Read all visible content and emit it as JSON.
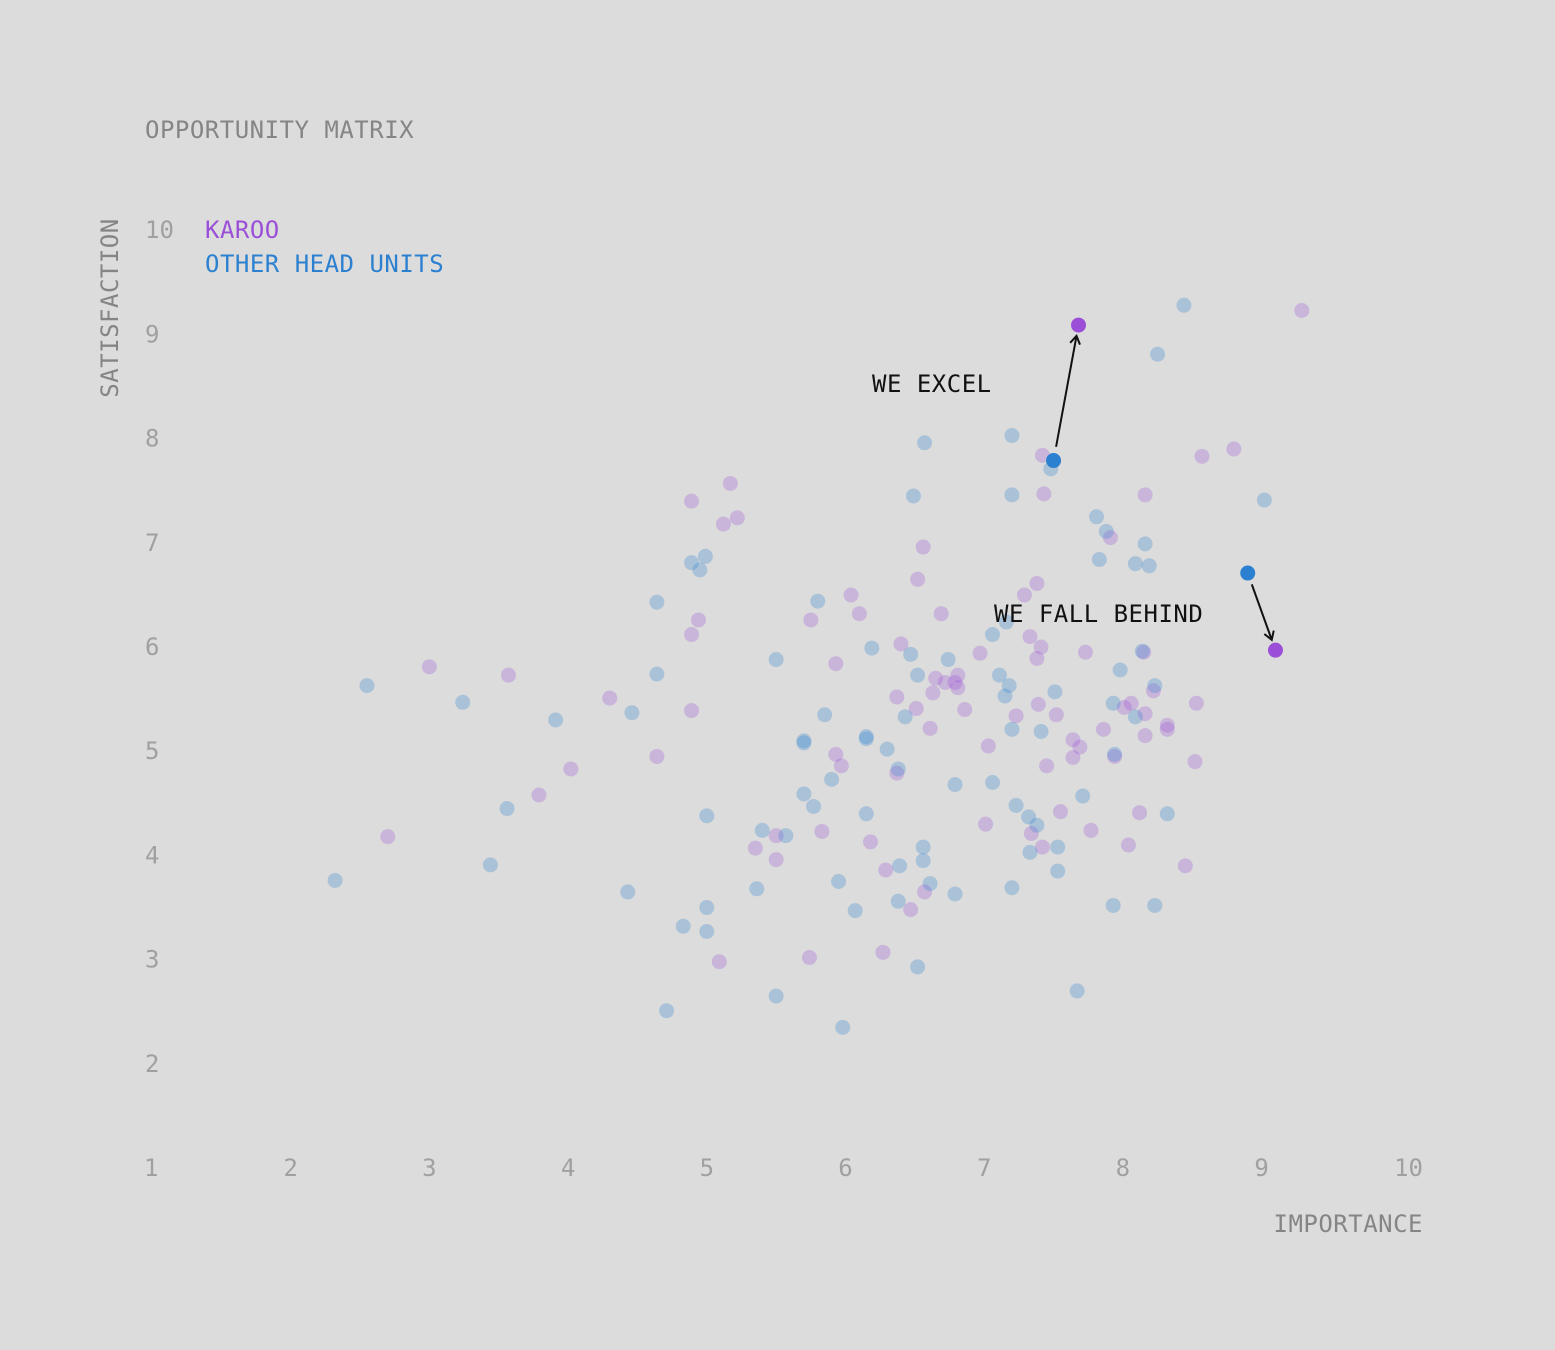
{
  "chart_data": {
    "type": "scatter",
    "title": "OPPORTUNITY MATRIX",
    "xlabel": "IMPORTANCE",
    "ylabel": "SATISFACTION",
    "xlim": [
      1,
      10
    ],
    "ylim": [
      1,
      10
    ],
    "xticks": [
      "1",
      "2",
      "3",
      "4",
      "5",
      "6",
      "7",
      "8",
      "9",
      "10"
    ],
    "yticks": [
      "2",
      "3",
      "4",
      "5",
      "6",
      "7",
      "8",
      "9",
      "10"
    ],
    "grid": false,
    "legend_position": "top-left",
    "series": [
      {
        "name": "KAROO",
        "color": "#9b4fd8",
        "points": [
          [
            3.0,
            5.8
          ],
          [
            3.57,
            5.72
          ],
          [
            2.7,
            4.17
          ],
          [
            3.79,
            4.57
          ],
          [
            4.02,
            4.82
          ],
          [
            4.3,
            5.5
          ],
          [
            4.64,
            4.94
          ],
          [
            4.89,
            7.39
          ],
          [
            4.89,
            5.38
          ],
          [
            4.89,
            6.11
          ],
          [
            4.94,
            6.25
          ],
          [
            5.12,
            7.17
          ],
          [
            5.17,
            7.56
          ],
          [
            5.22,
            7.23
          ],
          [
            5.09,
            2.97
          ],
          [
            5.35,
            4.06
          ],
          [
            5.5,
            3.95
          ],
          [
            5.5,
            4.18
          ],
          [
            5.74,
            3.01
          ],
          [
            5.75,
            6.25
          ],
          [
            5.83,
            4.22
          ],
          [
            5.93,
            5.83
          ],
          [
            5.93,
            4.96
          ],
          [
            5.97,
            4.85
          ],
          [
            6.04,
            6.49
          ],
          [
            6.1,
            6.31
          ],
          [
            6.18,
            4.12
          ],
          [
            6.27,
            3.06
          ],
          [
            6.29,
            3.85
          ],
          [
            6.37,
            4.78
          ],
          [
            6.37,
            5.51
          ],
          [
            6.4,
            6.02
          ],
          [
            6.47,
            3.47
          ],
          [
            6.51,
            5.4
          ],
          [
            6.52,
            6.64
          ],
          [
            6.56,
            6.95
          ],
          [
            6.57,
            3.64
          ],
          [
            6.61,
            5.21
          ],
          [
            6.63,
            5.55
          ],
          [
            6.65,
            5.69
          ],
          [
            6.69,
            6.31
          ],
          [
            6.72,
            5.65
          ],
          [
            6.79,
            5.65
          ],
          [
            6.81,
            5.6
          ],
          [
            6.81,
            5.72
          ],
          [
            6.86,
            5.39
          ],
          [
            6.97,
            5.93
          ],
          [
            7.01,
            4.29
          ],
          [
            7.03,
            5.04
          ],
          [
            7.23,
            5.33
          ],
          [
            7.29,
            6.49
          ],
          [
            7.33,
            6.09
          ],
          [
            7.34,
            4.2
          ],
          [
            7.38,
            5.88
          ],
          [
            7.38,
            6.6
          ],
          [
            7.39,
            5.44
          ],
          [
            7.41,
            5.99
          ],
          [
            7.42,
            7.83
          ],
          [
            7.42,
            4.07
          ],
          [
            7.43,
            7.46
          ],
          [
            7.45,
            4.85
          ],
          [
            7.52,
            5.34
          ],
          [
            7.55,
            4.41
          ],
          [
            7.64,
            5.1
          ],
          [
            7.64,
            4.93
          ],
          [
            7.69,
            5.03
          ],
          [
            7.73,
            5.94
          ],
          [
            7.77,
            4.23
          ],
          [
            7.86,
            5.2
          ],
          [
            7.91,
            7.04
          ],
          [
            7.94,
            4.94
          ],
          [
            8.01,
            5.41
          ],
          [
            8.04,
            4.09
          ],
          [
            8.06,
            5.45
          ],
          [
            8.12,
            4.4
          ],
          [
            8.16,
            5.35
          ],
          [
            8.16,
            5.14
          ],
          [
            8.16,
            7.45
          ],
          [
            8.22,
            5.57
          ],
          [
            8.32,
            5.24
          ],
          [
            8.32,
            5.2
          ],
          [
            8.45,
            3.89
          ],
          [
            8.52,
            4.89
          ],
          [
            8.53,
            5.45
          ],
          [
            8.57,
            7.82
          ],
          [
            8.8,
            7.89
          ],
          [
            9.29,
            9.22
          ],
          [
            8.15,
            5.94
          ]
        ]
      },
      {
        "name": "OTHER HEAD UNITS",
        "color": "#2b80d0",
        "points": [
          [
            2.32,
            3.75
          ],
          [
            2.55,
            5.62
          ],
          [
            3.24,
            5.46
          ],
          [
            3.44,
            3.9
          ],
          [
            3.56,
            4.44
          ],
          [
            3.91,
            5.29
          ],
          [
            4.43,
            3.64
          ],
          [
            4.46,
            5.36
          ],
          [
            4.64,
            6.42
          ],
          [
            4.64,
            5.73
          ],
          [
            4.71,
            2.5
          ],
          [
            4.83,
            3.31
          ],
          [
            4.89,
            6.8
          ],
          [
            4.95,
            6.73
          ],
          [
            4.99,
            6.86
          ],
          [
            5.0,
            4.37
          ],
          [
            5.0,
            3.49
          ],
          [
            5.0,
            3.26
          ],
          [
            5.36,
            3.67
          ],
          [
            5.4,
            4.23
          ],
          [
            5.5,
            5.87
          ],
          [
            5.5,
            2.64
          ],
          [
            5.57,
            4.18
          ],
          [
            5.7,
            5.09
          ],
          [
            5.7,
            5.07
          ],
          [
            5.7,
            4.58
          ],
          [
            5.77,
            4.46
          ],
          [
            5.8,
            6.43
          ],
          [
            5.85,
            5.34
          ],
          [
            5.9,
            4.72
          ],
          [
            5.95,
            3.74
          ],
          [
            5.98,
            2.34
          ],
          [
            6.07,
            3.46
          ],
          [
            6.15,
            5.11
          ],
          [
            6.15,
            5.13
          ],
          [
            6.15,
            4.39
          ],
          [
            6.19,
            5.98
          ],
          [
            6.3,
            5.01
          ],
          [
            6.38,
            4.82
          ],
          [
            6.38,
            3.55
          ],
          [
            6.39,
            3.89
          ],
          [
            6.43,
            5.32
          ],
          [
            6.47,
            5.92
          ],
          [
            6.49,
            7.44
          ],
          [
            6.52,
            5.72
          ],
          [
            6.52,
            2.92
          ],
          [
            6.56,
            4.07
          ],
          [
            6.56,
            3.94
          ],
          [
            6.57,
            7.95
          ],
          [
            6.61,
            3.72
          ],
          [
            6.74,
            5.87
          ],
          [
            6.79,
            4.67
          ],
          [
            6.79,
            3.62
          ],
          [
            7.06,
            6.11
          ],
          [
            7.06,
            4.69
          ],
          [
            7.11,
            5.72
          ],
          [
            7.15,
            5.52
          ],
          [
            7.16,
            6.23
          ],
          [
            7.18,
            5.62
          ],
          [
            7.2,
            8.02
          ],
          [
            7.2,
            5.2
          ],
          [
            7.2,
            3.68
          ],
          [
            7.2,
            7.45
          ],
          [
            7.23,
            4.47
          ],
          [
            7.32,
            4.36
          ],
          [
            7.33,
            4.02
          ],
          [
            7.38,
            4.28
          ],
          [
            7.41,
            5.18
          ],
          [
            7.48,
            7.7
          ],
          [
            7.51,
            5.56
          ],
          [
            7.53,
            4.07
          ],
          [
            7.53,
            3.84
          ],
          [
            7.67,
            2.69
          ],
          [
            7.71,
            4.56
          ],
          [
            7.81,
            7.24
          ],
          [
            7.83,
            6.83
          ],
          [
            7.88,
            7.1
          ],
          [
            7.93,
            3.51
          ],
          [
            7.93,
            5.45
          ],
          [
            7.94,
            4.96
          ],
          [
            7.98,
            5.77
          ],
          [
            8.09,
            5.32
          ],
          [
            8.09,
            6.79
          ],
          [
            8.14,
            5.95
          ],
          [
            8.16,
            6.98
          ],
          [
            8.19,
            6.77
          ],
          [
            8.23,
            3.51
          ],
          [
            8.23,
            5.62
          ],
          [
            8.25,
            8.8
          ],
          [
            8.32,
            4.39
          ],
          [
            8.44,
            9.27
          ],
          [
            9.02,
            7.4
          ]
        ]
      }
    ],
    "highlights": [
      {
        "label": "WE EXCEL",
        "from": [
          7.5,
          7.78
        ],
        "to": [
          7.68,
          9.08
        ]
      },
      {
        "label": "WE FALL BEHIND",
        "from": [
          8.9,
          6.7
        ],
        "to": [
          9.1,
          5.96
        ]
      }
    ]
  }
}
